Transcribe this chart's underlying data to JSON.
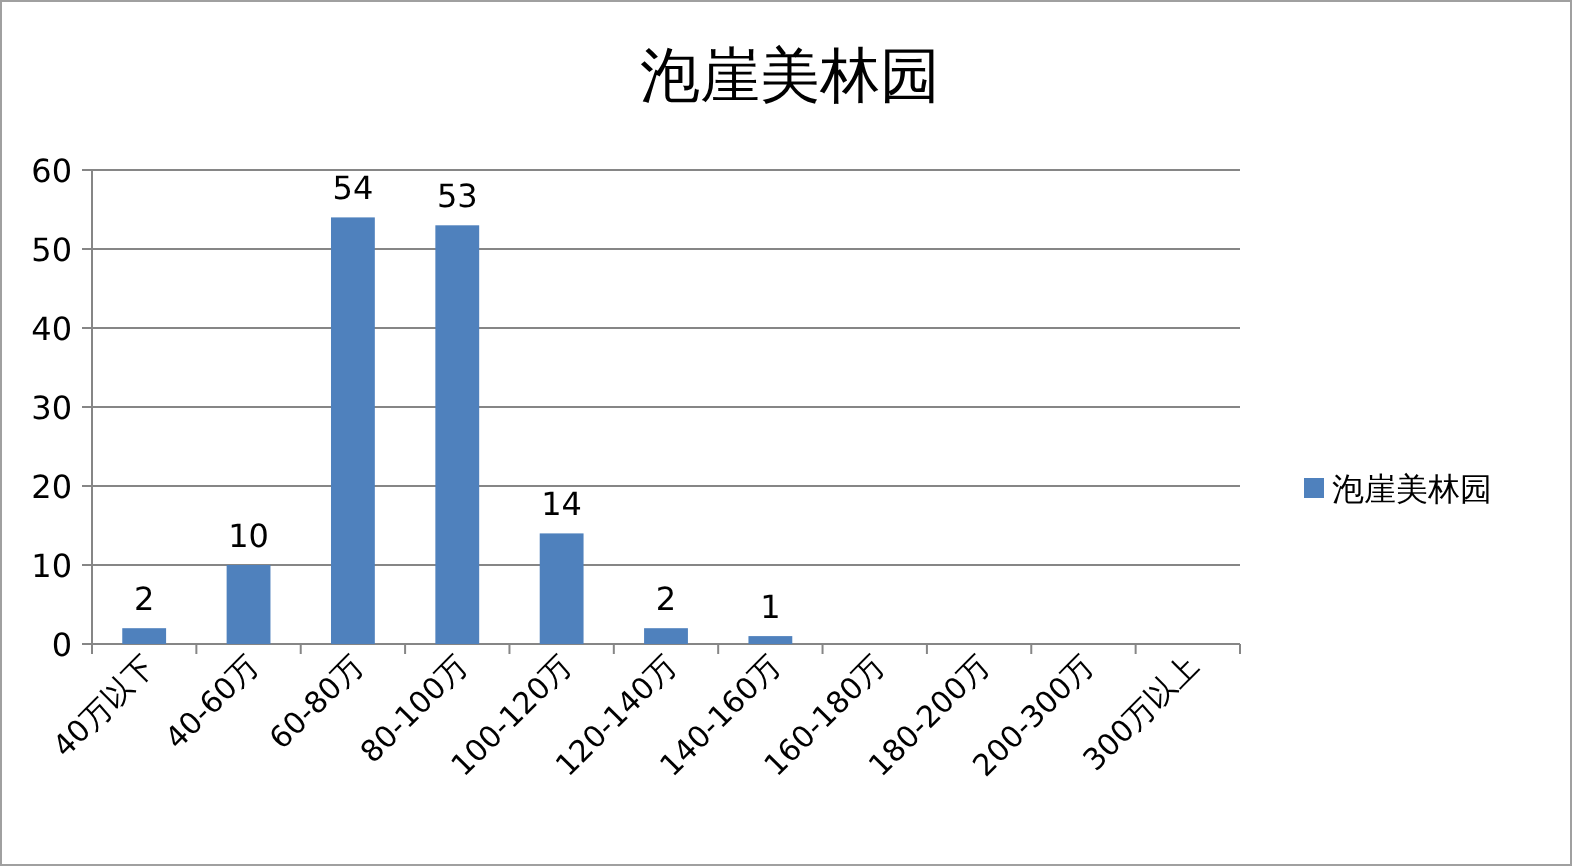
{
  "chart_data": {
    "type": "bar",
    "title": "泡崖美林园",
    "categories": [
      "40万以下",
      "40-60万",
      "60-80万",
      "80-100万",
      "100-120万",
      "120-140万",
      "140-160万",
      "160-180万",
      "180-200万",
      "200-300万",
      "300万以上"
    ],
    "series": [
      {
        "name": "泡崖美林园",
        "color": "#4f81bd",
        "values": [
          2,
          10,
          54,
          53,
          14,
          2,
          1,
          0,
          0,
          0,
          0
        ],
        "value_labels": [
          "2",
          "10",
          "54",
          "53",
          "14",
          "2",
          "1",
          null,
          null,
          null,
          null
        ]
      }
    ],
    "ylim": [
      0,
      60
    ],
    "yticks": [
      0,
      10,
      20,
      30,
      40,
      50,
      60
    ],
    "grid": "y",
    "legend": "right"
  }
}
